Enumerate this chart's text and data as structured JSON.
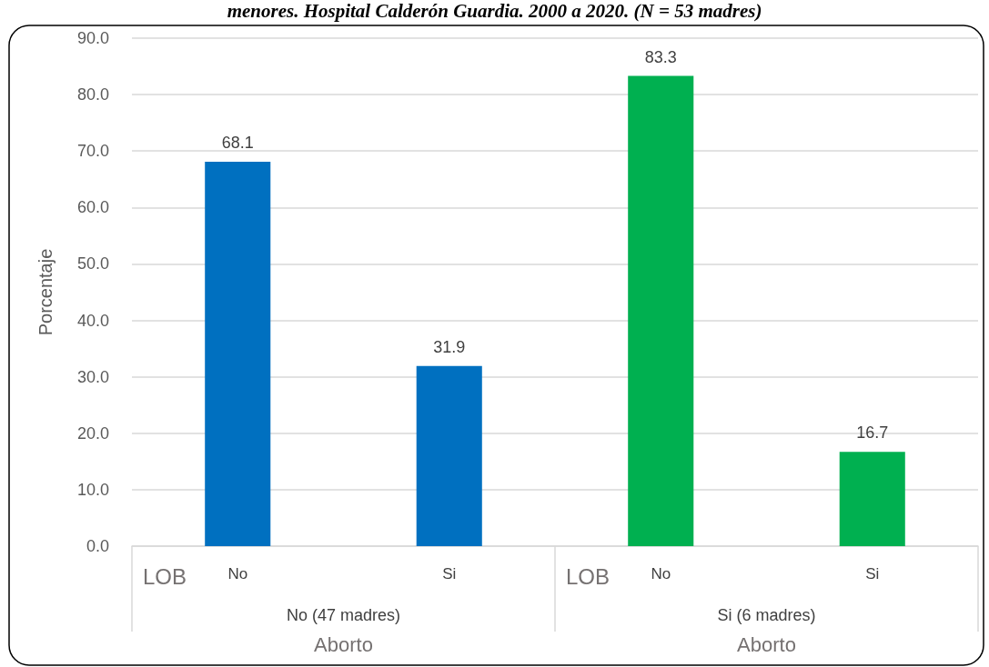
{
  "chart_data": {
    "type": "bar",
    "title": "menores. Hospital Calderón Guardia. 2000 a 2020. (N = 53 madres)",
    "ylabel": "Porcentaje",
    "categories": [
      "No",
      "Si",
      "No",
      "Si"
    ],
    "values": [
      68.1,
      31.9,
      83.3,
      16.7
    ],
    "colors": [
      "#0070c0",
      "#0070c0",
      "#00b050",
      "#00b050"
    ],
    "ylim": [
      0,
      90
    ],
    "yticks": [
      {
        "value": 0,
        "label": "0.0"
      },
      {
        "value": 10,
        "label": "10.0"
      },
      {
        "value": 20,
        "label": "20.0"
      },
      {
        "value": 30,
        "label": "30.0"
      },
      {
        "value": 40,
        "label": "40.0"
      },
      {
        "value": 50,
        "label": "50.0"
      },
      {
        "value": 60,
        "label": "60.0"
      },
      {
        "value": 70,
        "label": "70.0"
      },
      {
        "value": 80,
        "label": "80.0"
      },
      {
        "value": 90,
        "label": "90.0"
      }
    ],
    "grid": "y",
    "data_labels": true,
    "annotations": [
      "LOB",
      "LOB",
      "No (47 madres)",
      "Si (6 madres)",
      "Aborto",
      "Aborto"
    ]
  }
}
